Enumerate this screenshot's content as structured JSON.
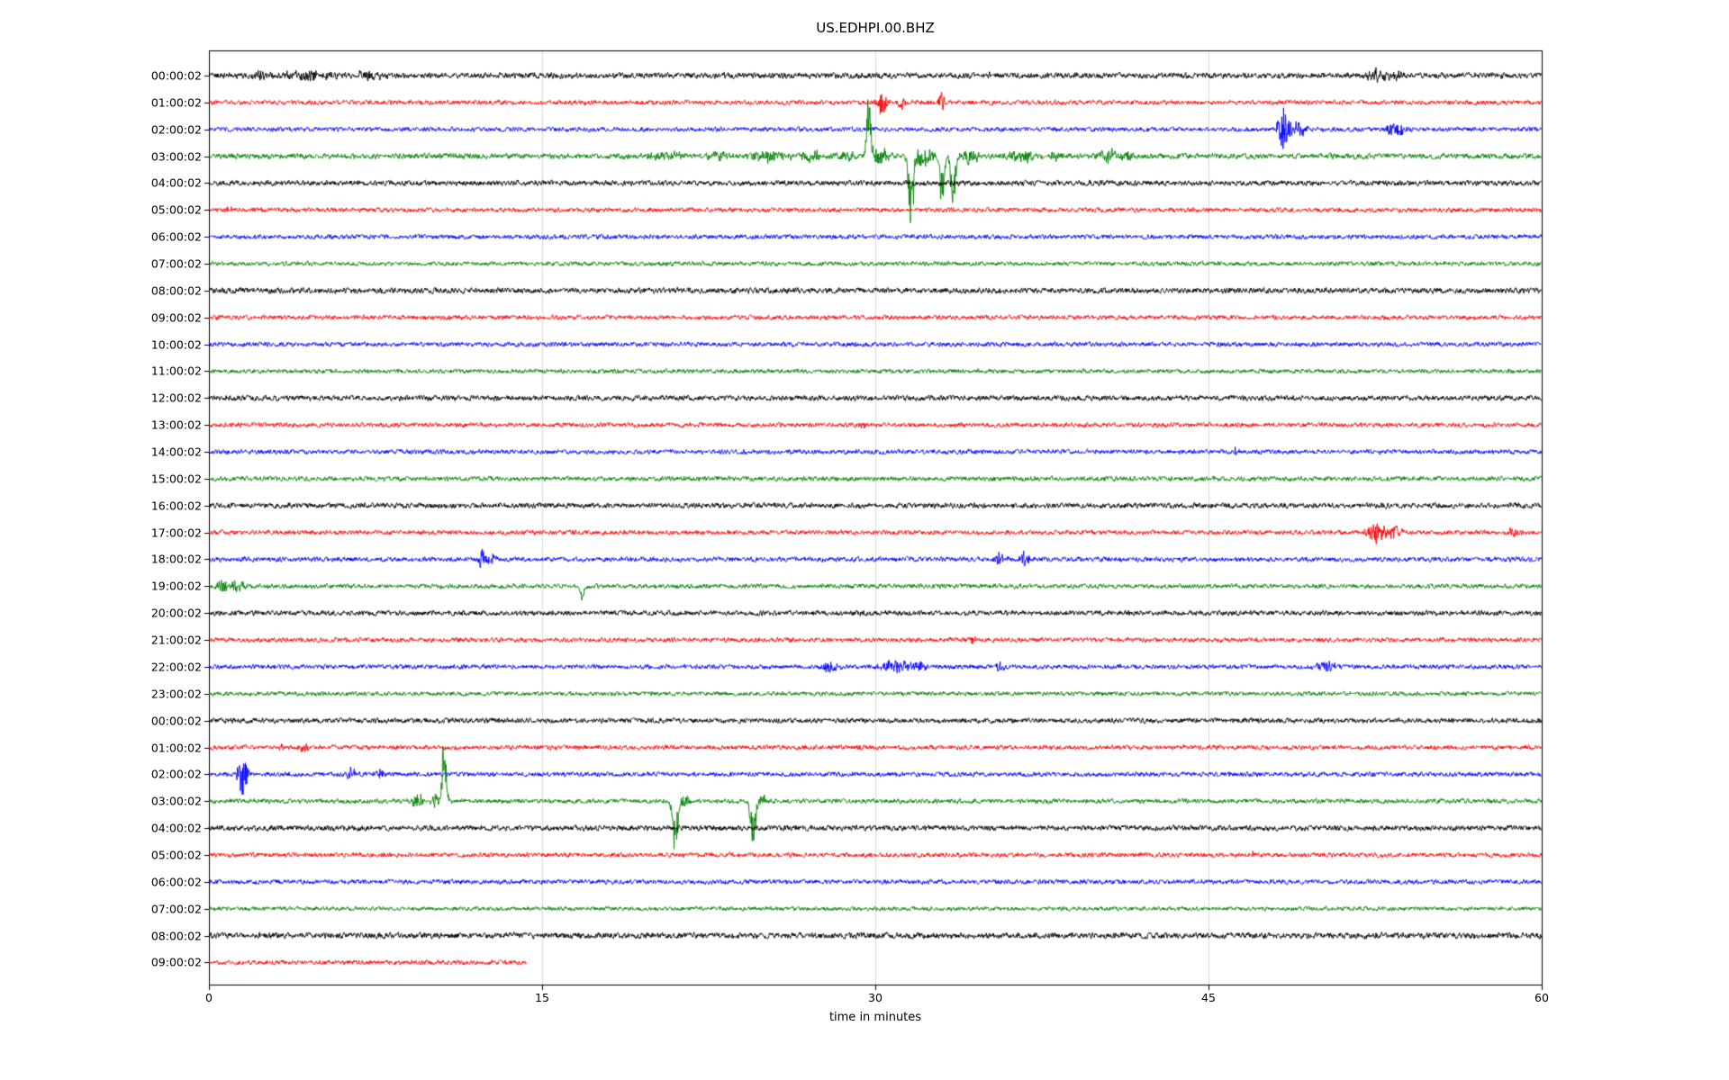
{
  "chart_data": {
    "type": "line",
    "subtype": "helicorder-seismogram",
    "title": "US.EDHPI.00.BHZ",
    "xlabel": "time in minutes",
    "xlim": [
      0,
      60
    ],
    "xticks": [
      0,
      15,
      30,
      45,
      60
    ],
    "grid_x": [
      15,
      30,
      45
    ],
    "grid_color": "#d9d9d9",
    "frame_color": "#000000",
    "row_minutes": 60,
    "colors": {
      "k": "#000000",
      "r": "#ff0000",
      "b": "#0000ff",
      "g": "#008000"
    },
    "color_cycle": [
      "k",
      "r",
      "b",
      "g"
    ],
    "rows": [
      {
        "label": "00:00:02",
        "color": "k",
        "noise": 1.25,
        "events": [
          {
            "t": 2.3,
            "dur": 0.8,
            "amp": 5
          },
          {
            "t": 4.6,
            "dur": 2.5,
            "amp": 4
          },
          {
            "t": 7.2,
            "dur": 1.2,
            "amp": 4
          },
          {
            "t": 35.2,
            "dur": 0.3,
            "amp": 4
          },
          {
            "t": 52.6,
            "dur": 1.0,
            "amp": 6
          },
          {
            "t": 53.6,
            "dur": 0.7,
            "amp": 5
          }
        ]
      },
      {
        "label": "01:00:02",
        "color": "r",
        "noise": 1.0,
        "events": [
          {
            "t": 30.3,
            "dur": 0.35,
            "amp": 14
          },
          {
            "t": 31.2,
            "dur": 0.3,
            "amp": 9
          },
          {
            "t": 33.0,
            "dur": 0.3,
            "amp": 12
          }
        ]
      },
      {
        "label": "02:00:02",
        "color": "b",
        "noise": 1.0,
        "events": [
          {
            "t": 48.4,
            "dur": 0.5,
            "amp": 24
          },
          {
            "t": 49.1,
            "dur": 0.6,
            "amp": 8
          },
          {
            "t": 53.4,
            "dur": 0.7,
            "amp": 9
          }
        ]
      },
      {
        "label": "03:00:02",
        "color": "g",
        "noise": 1.2,
        "events": [
          {
            "t": 20.6,
            "dur": 1.5,
            "amp": 4
          },
          {
            "t": 23.0,
            "dur": 1.0,
            "amp": 4
          },
          {
            "t": 25.2,
            "dur": 1.5,
            "amp": 6
          },
          {
            "t": 27.2,
            "dur": 1.2,
            "amp": 6
          },
          {
            "t": 28.6,
            "dur": 1.0,
            "amp": 5
          },
          {
            "t": 29.7,
            "dur": 0.22,
            "amp": 60,
            "dir": 1
          },
          {
            "t": 30.2,
            "dur": 0.8,
            "amp": 9
          },
          {
            "t": 31.6,
            "dur": 0.28,
            "amp": 66,
            "dir": -1
          },
          {
            "t": 32.1,
            "dur": 0.9,
            "amp": 11
          },
          {
            "t": 33.0,
            "dur": 0.22,
            "amp": 54,
            "dir": -1
          },
          {
            "t": 33.5,
            "dur": 0.26,
            "amp": 48,
            "dir": -1
          },
          {
            "t": 34.2,
            "dur": 0.9,
            "amp": 8
          },
          {
            "t": 36.6,
            "dur": 1.2,
            "amp": 6
          },
          {
            "t": 38.2,
            "dur": 0.8,
            "amp": 5
          },
          {
            "t": 40.6,
            "dur": 1.0,
            "amp": 7
          },
          {
            "t": 41.4,
            "dur": 0.5,
            "amp": 5
          }
        ]
      },
      {
        "label": "04:00:02",
        "color": "k",
        "noise": 1.15,
        "events": []
      },
      {
        "label": "05:00:02",
        "color": "r",
        "noise": 1.0,
        "events": [
          {
            "t": 0.9,
            "dur": 0.4,
            "amp": 3
          }
        ]
      },
      {
        "label": "06:00:02",
        "color": "b",
        "noise": 1.0,
        "events": []
      },
      {
        "label": "07:00:02",
        "color": "g",
        "noise": 0.95,
        "events": []
      },
      {
        "label": "08:00:02",
        "color": "k",
        "noise": 1.2,
        "events": []
      },
      {
        "label": "09:00:02",
        "color": "r",
        "noise": 1.0,
        "events": []
      },
      {
        "label": "10:00:02",
        "color": "b",
        "noise": 1.0,
        "events": []
      },
      {
        "label": "11:00:02",
        "color": "g",
        "noise": 0.95,
        "events": []
      },
      {
        "label": "12:00:02",
        "color": "k",
        "noise": 1.15,
        "events": []
      },
      {
        "label": "13:00:02",
        "color": "r",
        "noise": 1.0,
        "events": [
          {
            "t": 29.4,
            "dur": 0.3,
            "amp": 4
          }
        ]
      },
      {
        "label": "14:00:02",
        "color": "b",
        "noise": 1.0,
        "events": [
          {
            "t": 46.2,
            "dur": 0.25,
            "amp": 4
          }
        ]
      },
      {
        "label": "15:00:02",
        "color": "g",
        "noise": 1.05,
        "events": []
      },
      {
        "label": "16:00:02",
        "color": "k",
        "noise": 1.15,
        "events": []
      },
      {
        "label": "17:00:02",
        "color": "r",
        "noise": 1.0,
        "events": [
          {
            "t": 52.6,
            "dur": 0.8,
            "amp": 12
          },
          {
            "t": 53.4,
            "dur": 0.5,
            "amp": 8
          },
          {
            "t": 58.7,
            "dur": 0.5,
            "amp": 7
          }
        ]
      },
      {
        "label": "18:00:02",
        "color": "b",
        "noise": 1.05,
        "events": [
          {
            "t": 12.3,
            "dur": 0.3,
            "amp": 12
          },
          {
            "t": 12.7,
            "dur": 0.4,
            "amp": 6
          },
          {
            "t": 35.6,
            "dur": 0.5,
            "amp": 9
          },
          {
            "t": 36.7,
            "dur": 0.4,
            "amp": 8
          }
        ]
      },
      {
        "label": "19:00:02",
        "color": "g",
        "noise": 1.0,
        "events": [
          {
            "t": 0.6,
            "dur": 0.4,
            "amp": 8
          },
          {
            "t": 1.3,
            "dur": 0.5,
            "amp": 7
          },
          {
            "t": 16.8,
            "dur": 0.3,
            "amp": 12,
            "dir": -1
          }
        ]
      },
      {
        "label": "20:00:02",
        "color": "k",
        "noise": 1.1,
        "events": []
      },
      {
        "label": "21:00:02",
        "color": "r",
        "noise": 1.0,
        "events": [
          {
            "t": 34.4,
            "dur": 0.3,
            "amp": 5
          }
        ]
      },
      {
        "label": "22:00:02",
        "color": "b",
        "noise": 1.0,
        "events": [
          {
            "t": 27.9,
            "dur": 0.8,
            "amp": 5
          },
          {
            "t": 30.9,
            "dur": 1.2,
            "amp": 6
          },
          {
            "t": 31.9,
            "dur": 0.8,
            "amp": 6
          },
          {
            "t": 35.6,
            "dur": 0.4,
            "amp": 7
          },
          {
            "t": 50.3,
            "dur": 0.8,
            "amp": 5
          }
        ]
      },
      {
        "label": "23:00:02",
        "color": "g",
        "noise": 0.95,
        "events": []
      },
      {
        "label": "00:00:02",
        "color": "k",
        "noise": 1.1,
        "events": []
      },
      {
        "label": "01:00:02",
        "color": "r",
        "noise": 1.0,
        "events": [
          {
            "t": 3.3,
            "dur": 0.3,
            "amp": 4
          },
          {
            "t": 4.3,
            "dur": 0.4,
            "amp": 6
          }
        ]
      },
      {
        "label": "02:00:02",
        "color": "b",
        "noise": 1.0,
        "events": [
          {
            "t": 1.5,
            "dur": 0.4,
            "amp": 26
          },
          {
            "t": 6.4,
            "dur": 0.5,
            "amp": 6
          },
          {
            "t": 7.7,
            "dur": 0.4,
            "amp": 5
          }
        ]
      },
      {
        "label": "03:00:02",
        "color": "g",
        "noise": 1.0,
        "events": [
          {
            "t": 9.4,
            "dur": 0.5,
            "amp": 8
          },
          {
            "t": 10.2,
            "dur": 0.35,
            "amp": 8
          },
          {
            "t": 10.6,
            "dur": 0.22,
            "amp": 68,
            "dir": 1
          },
          {
            "t": 21.0,
            "dur": 0.28,
            "amp": 52,
            "dir": -1
          },
          {
            "t": 21.4,
            "dur": 0.4,
            "amp": 7
          },
          {
            "t": 24.5,
            "dur": 0.26,
            "amp": 48,
            "dir": -1
          },
          {
            "t": 24.9,
            "dur": 0.4,
            "amp": 6
          }
        ]
      },
      {
        "label": "04:00:02",
        "color": "k",
        "noise": 1.15,
        "events": []
      },
      {
        "label": "05:00:02",
        "color": "r",
        "noise": 1.0,
        "events": [
          {
            "t": 47.0,
            "dur": 0.25,
            "amp": 3
          }
        ]
      },
      {
        "label": "06:00:02",
        "color": "b",
        "noise": 1.0,
        "events": []
      },
      {
        "label": "07:00:02",
        "color": "g",
        "noise": 0.9,
        "events": []
      },
      {
        "label": "08:00:02",
        "color": "k",
        "noise": 1.3,
        "events": []
      },
      {
        "label": "09:00:02",
        "color": "r",
        "noise": 1.0,
        "end": 14.3,
        "events": []
      }
    ]
  }
}
